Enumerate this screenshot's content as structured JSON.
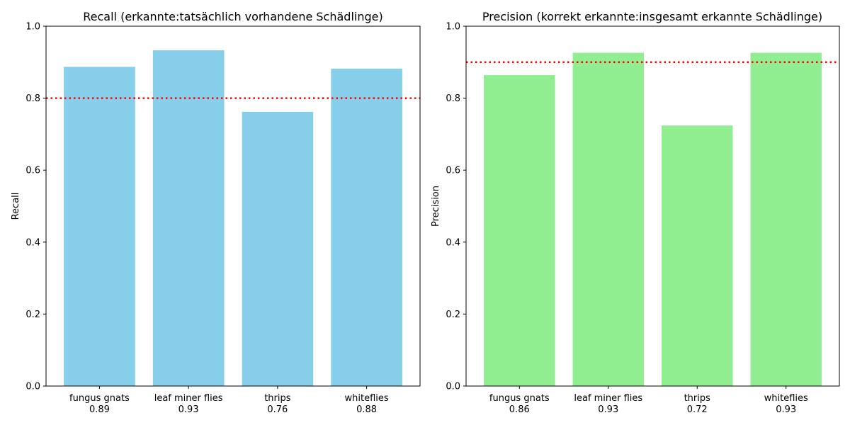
{
  "chart_data": [
    {
      "type": "bar",
      "title": "Recall (erkannte:tatsächlich vorhandene Schädlinge)",
      "xlabel": "",
      "ylabel": "Recall",
      "categories": [
        "fungus gnats",
        "leaf miner flies",
        "thrips",
        "whiteflies"
      ],
      "category_value_labels": [
        "0.89",
        "0.93",
        "0.76",
        "0.88"
      ],
      "values": [
        0.887,
        0.933,
        0.762,
        0.882
      ],
      "ylim": [
        0.0,
        1.0
      ],
      "yticks": [
        "0.0",
        "0.2",
        "0.4",
        "0.6",
        "0.8",
        "1.0"
      ],
      "threshold": 0.8,
      "threshold_style": "dotted",
      "bar_color": "#87ceeb",
      "threshold_color": "#ff0000",
      "grid": false
    },
    {
      "type": "bar",
      "title": "Precision (korrekt erkannte:insgesamt erkannte Schädlinge)",
      "xlabel": "",
      "ylabel": "Precision",
      "categories": [
        "fungus gnats",
        "leaf miner flies",
        "thrips",
        "whiteflies"
      ],
      "category_value_labels": [
        "0.86",
        "0.93",
        "0.72",
        "0.93"
      ],
      "values": [
        0.864,
        0.926,
        0.724,
        0.926
      ],
      "ylim": [
        0.0,
        1.0
      ],
      "yticks": [
        "0.0",
        "0.2",
        "0.4",
        "0.6",
        "0.8",
        "1.0"
      ],
      "threshold": 0.9,
      "threshold_style": "dotted",
      "bar_color": "#90ee90",
      "threshold_color": "#ff0000",
      "grid": false
    }
  ]
}
